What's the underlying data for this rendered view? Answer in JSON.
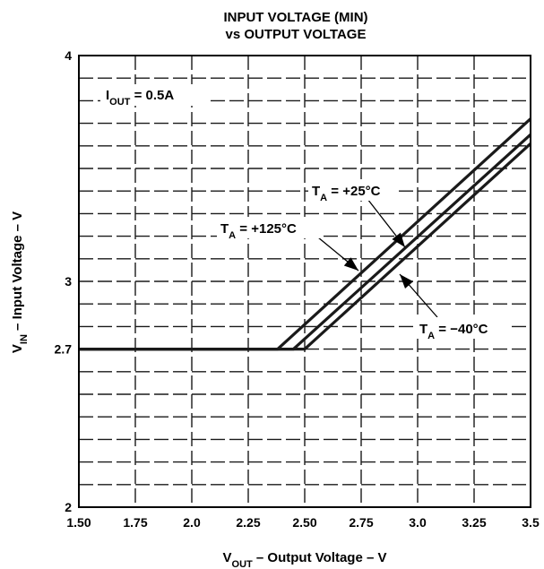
{
  "chart_data": {
    "type": "line",
    "title": [
      "INPUT VOLTAGE (MIN)",
      "vs OUTPUT VOLTAGE"
    ],
    "xlabel": {
      "main": "V",
      "sub": "OUT",
      "rest": " – Output Voltage – V"
    },
    "ylabel": {
      "main": "V",
      "sub": "IN",
      "rest": " – Input Voltage – V"
    },
    "xlim": [
      1.5,
      3.5
    ],
    "ylim": [
      2,
      4
    ],
    "xticks": [
      1.5,
      1.75,
      2.0,
      2.25,
      2.5,
      2.75,
      3.0,
      3.25,
      3.5
    ],
    "xtick_labels": [
      "1.50",
      "1.75",
      "2.0",
      "2.25",
      "2.50",
      "2.75",
      "3.0",
      "3.25",
      "3.5"
    ],
    "yticks": [
      2,
      2.7,
      3,
      4
    ],
    "ytick_labels": [
      "2",
      "2.7",
      "3",
      "4"
    ],
    "grid": true,
    "grid_style": "dashed",
    "series": [
      {
        "name": "T_A = +125°C",
        "x": [
          1.5,
          2.38,
          3.5
        ],
        "y": [
          2.7,
          2.7,
          3.72
        ]
      },
      {
        "name": "T_A = +25°C",
        "x": [
          1.5,
          2.45,
          3.5
        ],
        "y": [
          2.7,
          2.7,
          3.65
        ]
      },
      {
        "name": "T_A = −40°C",
        "x": [
          1.5,
          2.5,
          3.5
        ],
        "y": [
          2.7,
          2.7,
          3.61
        ]
      }
    ],
    "annotations": [
      {
        "parts": [
          [
            "I",
            ""
          ],
          [
            "OUT",
            "sub"
          ],
          [
            " = 0.5A",
            ""
          ]
        ]
      },
      {
        "parts": [
          [
            "T",
            ""
          ],
          [
            "A",
            "sub"
          ],
          [
            " = +25°C",
            ""
          ]
        ]
      },
      {
        "parts": [
          [
            "T",
            ""
          ],
          [
            "A",
            "sub"
          ],
          [
            " = +125°C",
            ""
          ]
        ]
      },
      {
        "parts": [
          [
            "T",
            ""
          ],
          [
            "A",
            "sub"
          ],
          [
            " = −40°C",
            ""
          ]
        ]
      }
    ],
    "colors": {
      "lines": "#1a1a1a",
      "grid": "#1a1a1a",
      "frame": "#000000"
    }
  }
}
